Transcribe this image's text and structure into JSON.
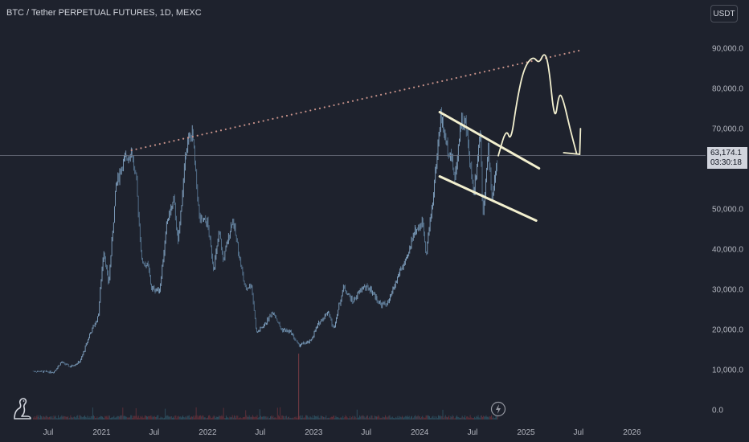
{
  "header": {
    "symbol_title": "BTC / Tether PERPETUAL FUTURES, 1D, MEXC",
    "unit_button": "USDT"
  },
  "last_price": {
    "value": "63,174.1",
    "countdown": "03:30:18",
    "y_value": 63174.1
  },
  "colors": {
    "background": "#1e222d",
    "candle": "#7aa4c8",
    "price_line": "#9598a1",
    "drawing": "#f3f0cf",
    "trendline_dots": "#c8928a",
    "axis_text": "#b2b5be"
  },
  "icons": [
    "tradingview-dino-icon",
    "lightning-icon"
  ],
  "chart_data": {
    "type": "candlestick",
    "title": "",
    "ylim": [
      -2500,
      98500
    ],
    "y_ticks": [
      {
        "value": 90000,
        "label": "90,000.0"
      },
      {
        "value": 80000,
        "label": "80,000.0"
      },
      {
        "value": 70000,
        "label": "70,000.0"
      },
      {
        "value": 50000,
        "label": "50,000.0"
      },
      {
        "value": 40000,
        "label": "40,000.0"
      },
      {
        "value": 30000,
        "label": "30,000.0"
      },
      {
        "value": 20000,
        "label": "20,000.0"
      },
      {
        "value": 10000,
        "label": "10,000.0"
      },
      {
        "value": 0,
        "label": "0.0"
      }
    ],
    "x_ticks": [
      {
        "date": "2020-07-01",
        "label": "Jul"
      },
      {
        "date": "2021-01-01",
        "label": "2021"
      },
      {
        "date": "2021-07-01",
        "label": "Jul"
      },
      {
        "date": "2022-01-01",
        "label": "2022"
      },
      {
        "date": "2022-07-01",
        "label": "Jul"
      },
      {
        "date": "2023-01-01",
        "label": "2023"
      },
      {
        "date": "2023-07-01",
        "label": "Jul"
      },
      {
        "date": "2024-01-01",
        "label": "2024"
      },
      {
        "date": "2024-07-01",
        "label": "Jul"
      },
      {
        "date": "2025-01-01",
        "label": "2025"
      },
      {
        "date": "2025-07-01",
        "label": "Jul"
      },
      {
        "date": "2026-01-01",
        "label": "2026"
      }
    ],
    "price_path": [
      [
        "2020-05-10",
        9500
      ],
      [
        "2020-06-15",
        9400
      ],
      [
        "2020-07-20",
        9300
      ],
      [
        "2020-08-15",
        11800
      ],
      [
        "2020-09-15",
        10600
      ],
      [
        "2020-10-20",
        12000
      ],
      [
        "2020-11-20",
        18500
      ],
      [
        "2020-12-20",
        23000
      ],
      [
        "2021-01-08",
        40000
      ],
      [
        "2021-01-25",
        31000
      ],
      [
        "2021-02-20",
        56000
      ],
      [
        "2021-03-13",
        61000
      ],
      [
        "2021-04-14",
        64500
      ],
      [
        "2021-05-01",
        56000
      ],
      [
        "2021-05-19",
        37000
      ],
      [
        "2021-06-10",
        35500
      ],
      [
        "2021-06-22",
        30000
      ],
      [
        "2021-07-20",
        29800
      ],
      [
        "2021-08-15",
        47000
      ],
      [
        "2021-09-07",
        52000
      ],
      [
        "2021-09-21",
        41000
      ],
      [
        "2021-10-20",
        66000
      ],
      [
        "2021-11-10",
        68500
      ],
      [
        "2021-12-04",
        47000
      ],
      [
        "2021-12-31",
        46500
      ],
      [
        "2022-01-22",
        35000
      ],
      [
        "2022-02-10",
        44000
      ],
      [
        "2022-02-24",
        37000
      ],
      [
        "2022-03-28",
        47500
      ],
      [
        "2022-05-10",
        30000
      ],
      [
        "2022-06-01",
        31000
      ],
      [
        "2022-06-18",
        19000
      ],
      [
        "2022-07-15",
        21000
      ],
      [
        "2022-08-15",
        24500
      ],
      [
        "2022-09-10",
        20000
      ],
      [
        "2022-10-15",
        19200
      ],
      [
        "2022-11-09",
        16000
      ],
      [
        "2022-12-20",
        16800
      ],
      [
        "2023-01-15",
        21000
      ],
      [
        "2023-02-20",
        24500
      ],
      [
        "2023-03-10",
        20000
      ],
      [
        "2023-04-14",
        30500
      ],
      [
        "2023-05-15",
        26800
      ],
      [
        "2023-06-20",
        30500
      ],
      [
        "2023-07-15",
        30000
      ],
      [
        "2023-08-20",
        26000
      ],
      [
        "2023-09-15",
        26500
      ],
      [
        "2023-10-25",
        34500
      ],
      [
        "2023-11-20",
        37500
      ],
      [
        "2023-12-10",
        44000
      ],
      [
        "2024-01-12",
        46500
      ],
      [
        "2024-01-23",
        39000
      ],
      [
        "2024-02-15",
        52000
      ],
      [
        "2024-03-14",
        73500
      ],
      [
        "2024-04-01",
        66000
      ],
      [
        "2024-04-20",
        63000
      ],
      [
        "2024-05-01",
        57000
      ],
      [
        "2024-05-21",
        71500
      ],
      [
        "2024-06-07",
        71000
      ],
      [
        "2024-07-05",
        54000
      ],
      [
        "2024-07-28",
        69500
      ],
      [
        "2024-08-05",
        49000
      ],
      [
        "2024-08-25",
        64500
      ],
      [
        "2024-09-06",
        52500
      ],
      [
        "2024-09-27",
        63174
      ]
    ],
    "annotations": {
      "dotted_trendline": [
        [
          "2021-04-14",
          64500
        ],
        [
          "2025-07-15",
          89500
        ]
      ],
      "channel_upper": [
        [
          "2024-03-10",
          74000
        ],
        [
          "2025-02-15",
          60000
        ]
      ],
      "channel_lower": [
        [
          "2024-03-10",
          58000
        ],
        [
          "2025-02-05",
          47000
        ]
      ],
      "projection_path": [
        [
          "2024-09-27",
          63000
        ],
        [
          "2024-10-25",
          70000
        ],
        [
          "2024-11-10",
          66500
        ],
        [
          "2024-12-01",
          77000
        ],
        [
          "2024-12-25",
          85000
        ],
        [
          "2025-01-25",
          88000
        ],
        [
          "2025-02-15",
          86000
        ],
        [
          "2025-03-05",
          89000
        ],
        [
          "2025-03-20",
          86000
        ],
        [
          "2025-04-10",
          71000
        ],
        [
          "2025-04-25",
          79000
        ],
        [
          "2025-05-10",
          77000
        ],
        [
          "2025-06-01",
          70000
        ],
        [
          "2025-06-25",
          63500
        ]
      ],
      "arrow_tip": [
        "2025-07-05",
        63500
      ]
    }
  }
}
